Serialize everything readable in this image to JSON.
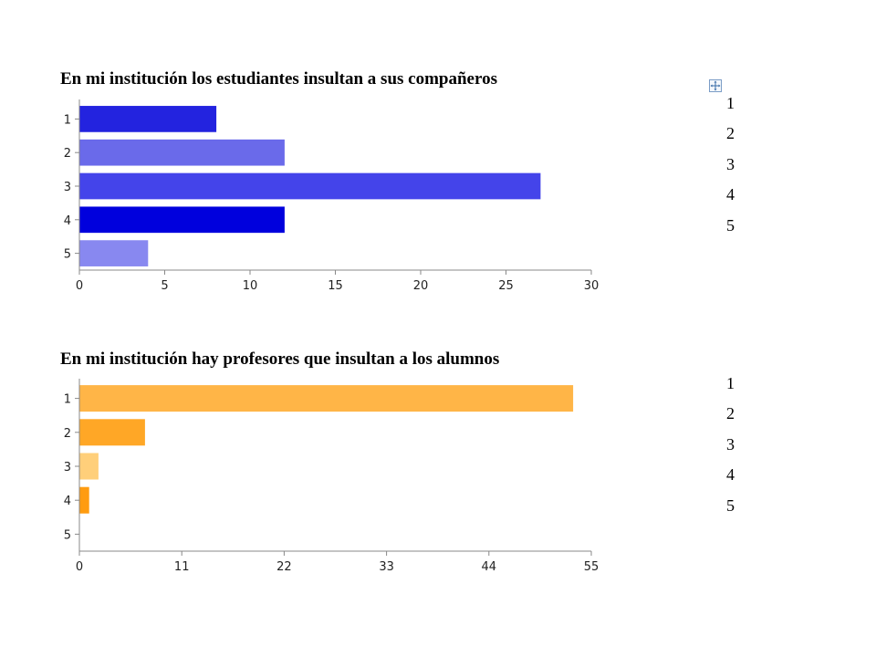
{
  "chart_data": [
    {
      "type": "bar",
      "orientation": "horizontal",
      "title": "En mi institución los estudiantes insultan a sus compañeros",
      "categories": [
        "1",
        "2",
        "3",
        "4",
        "5"
      ],
      "values": [
        8,
        12,
        27,
        12,
        4
      ],
      "colors": [
        "#2323df",
        "#6a6aea",
        "#4444ea",
        "#0000dd",
        "#8888f0"
      ],
      "xlim": [
        0,
        30
      ],
      "xticks": [
        "0",
        "5",
        "10",
        "15",
        "20",
        "25",
        "30"
      ],
      "legend": [
        "1",
        "2",
        "3",
        "4",
        "5"
      ],
      "legend_position": "right",
      "grid": false
    },
    {
      "type": "bar",
      "orientation": "horizontal",
      "title": "En mi institución hay profesores que insultan a los alumnos",
      "categories": [
        "1",
        "2",
        "3",
        "4",
        "5"
      ],
      "values": [
        53,
        7,
        2,
        1,
        0
      ],
      "colors": [
        "#ffb547",
        "#ffa726",
        "#ffcf7a",
        "#ff9c10",
        "#ffe0a0"
      ],
      "xlim": [
        0,
        55
      ],
      "xticks": [
        "0",
        "11",
        "22",
        "33",
        "44",
        "55"
      ],
      "legend": [
        "1",
        "2",
        "3",
        "4",
        "5"
      ],
      "legend_position": "right",
      "grid": false
    }
  ],
  "icons": {
    "move_handle": "move-arrows-icon"
  }
}
